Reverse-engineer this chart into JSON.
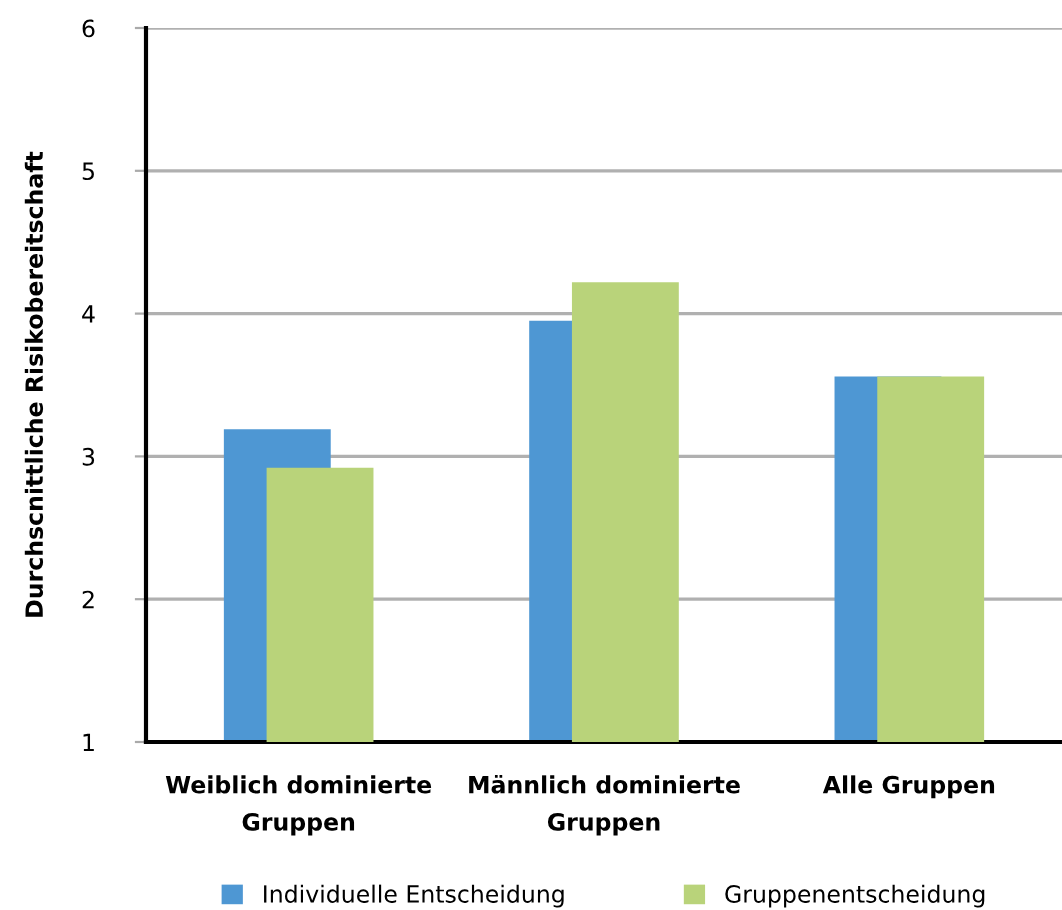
{
  "chart_data": {
    "type": "bar",
    "ylabel": "Durchscnittliche Risikobereitschaft",
    "categories": [
      "Weiblich dominierte Gruppen",
      "Männlich dominierte Gruppen",
      "Alle Gruppen"
    ],
    "series": [
      {
        "name": "Individuelle Entscheidung",
        "color": "#4e97d3",
        "values": [
          3.19,
          3.95,
          3.56
        ]
      },
      {
        "name": "Gruppenentscheidung",
        "color": "#b9d37a",
        "values": [
          2.92,
          4.22,
          3.56
        ]
      }
    ],
    "ylim": [
      1,
      6
    ],
    "yticks": [
      1,
      2,
      3,
      4,
      5,
      6
    ],
    "grid": "y",
    "legend": "bottom"
  }
}
